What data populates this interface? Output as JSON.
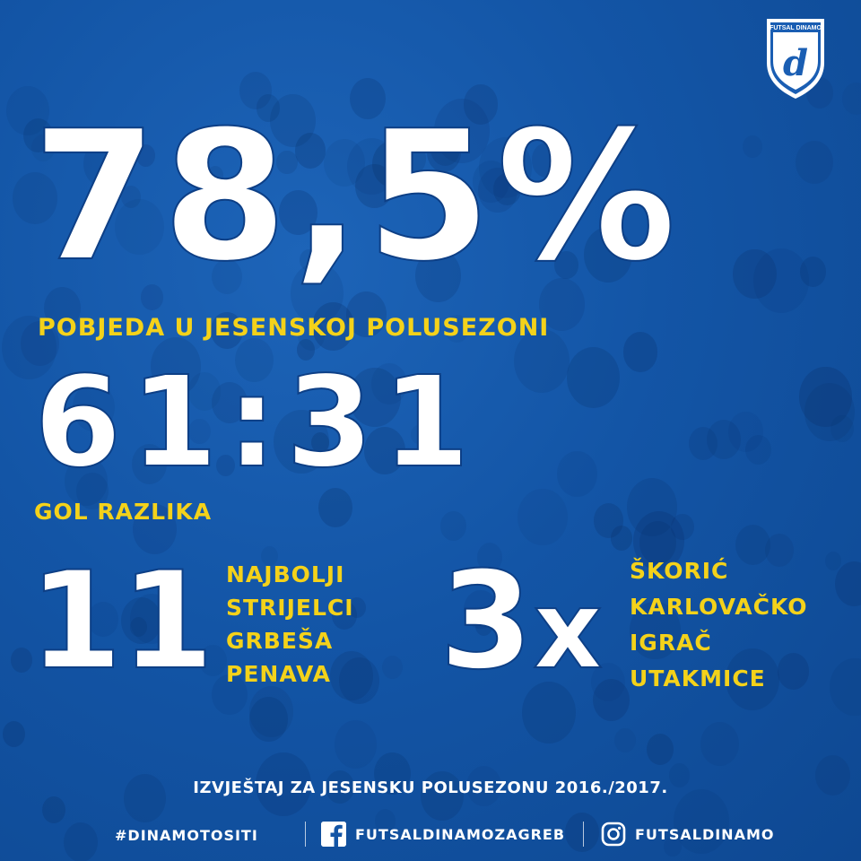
{
  "logo": {
    "text": "FUTSAL DINAMO",
    "letter": "d"
  },
  "stat_pct": {
    "value": "78,5%",
    "label": "POBJEDA U JESENSKOJ POLUSEZONI"
  },
  "stat_goals": {
    "value": "61:31",
    "label": "GOL RAZLIKA"
  },
  "stat_scorers": {
    "value": "11",
    "lines": [
      "NAJBOLJI",
      "STRIJELCI",
      "GRBEŠA",
      "PENAVA"
    ]
  },
  "stat_mvp": {
    "value": "3",
    "suffix": "x",
    "lines": [
      "ŠKORIĆ",
      "KARLOVAČKO",
      "IGRAČ",
      "UTAKMICE"
    ]
  },
  "report": "IZVJEŠTAJ ZA JESENSKU POLUSEZONU 2016./2017.",
  "footer": {
    "hashtag": "#DINAMOTOSITI",
    "facebook": "FUTSALDINAMOZAGREB",
    "instagram": "FUTSALDINAMO",
    "facebook_icon": "facebook-icon",
    "instagram_icon": "instagram-icon"
  },
  "colors": {
    "background": "#1355a6",
    "accent": "#f4d21a",
    "text": "#ffffff"
  }
}
